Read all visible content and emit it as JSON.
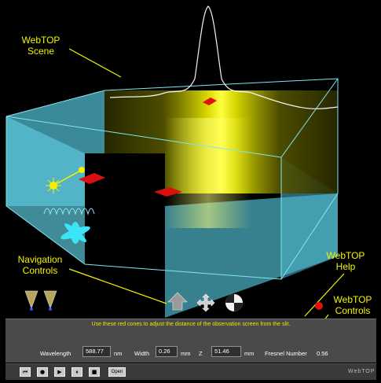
{
  "callouts": {
    "scene": "WebTOP Scene",
    "navigation": "Navigation Controls",
    "help": "WebTOP Help",
    "controls": "WebTOP Controls"
  },
  "panel": {
    "hint": "Use these red cones to adjust the distance of the observation screen from the slit.",
    "wavelength_label": "Wavelength",
    "wavelength_value": "588.77",
    "wavelength_unit": "nm",
    "width_label": "Width",
    "width_value": "0.26",
    "width_unit": "mm",
    "z_label": "Z",
    "z_value": "51.46",
    "z_unit": "mm",
    "fresnel_label": "Fresnel Number",
    "fresnel_value": "0.56"
  },
  "toolbar": {
    "buttons": [
      "⏮",
      "●",
      "▶",
      "⏸",
      "■"
    ],
    "open_label": "Open",
    "brand": "WebTOP"
  },
  "colors": {
    "callout": "#f4f400",
    "box_edge": "#7fe6f0",
    "box_fill": "#4fb8cc",
    "cone": "#e01010",
    "screen_glow": "#f8f800"
  }
}
